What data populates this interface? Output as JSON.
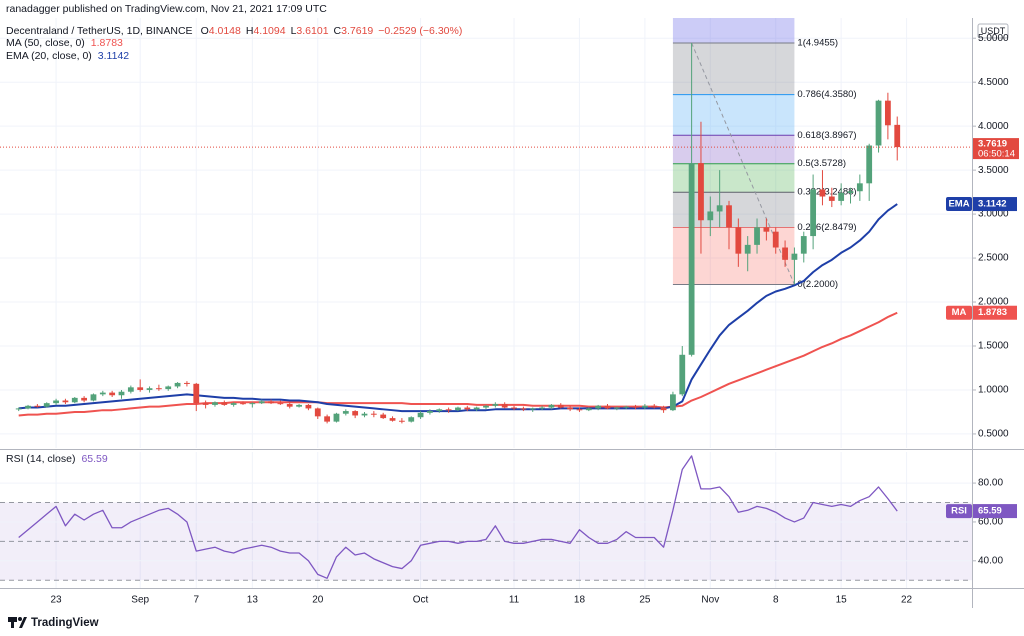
{
  "header": {
    "published": "ranadagger published on TradingView.com, Nov 21, 2021 17:09 UTC",
    "brand": "TradingView"
  },
  "chart_data": {
    "type": "candlestick",
    "symbol": "Decentraland / TetherUS, 1D, BINANCE",
    "ohlc_labels": [
      "O",
      "H",
      "L",
      "C"
    ],
    "change_label": "−0.2529 (−6.30%)",
    "currency": "USDT",
    "countdown": "06:50:14",
    "up_color": "#53a27a",
    "down_color": "#e2493f",
    "grid": true,
    "x": [
      "2021-08-19",
      "2021-08-20",
      "2021-08-21",
      "2021-08-22",
      "2021-08-23",
      "2021-08-24",
      "2021-08-25",
      "2021-08-26",
      "2021-08-27",
      "2021-08-28",
      "2021-08-29",
      "2021-08-30",
      "2021-08-31",
      "2021-09-01",
      "2021-09-02",
      "2021-09-03",
      "2021-09-04",
      "2021-09-05",
      "2021-09-06",
      "2021-09-07",
      "2021-09-08",
      "2021-09-09",
      "2021-09-10",
      "2021-09-11",
      "2021-09-12",
      "2021-09-13",
      "2021-09-14",
      "2021-09-15",
      "2021-09-16",
      "2021-09-17",
      "2021-09-18",
      "2021-09-19",
      "2021-09-20",
      "2021-09-21",
      "2021-09-22",
      "2021-09-23",
      "2021-09-24",
      "2021-09-25",
      "2021-09-26",
      "2021-09-27",
      "2021-09-28",
      "2021-09-29",
      "2021-09-30",
      "2021-10-01",
      "2021-10-02",
      "2021-10-03",
      "2021-10-04",
      "2021-10-05",
      "2021-10-06",
      "2021-10-07",
      "2021-10-08",
      "2021-10-09",
      "2021-10-10",
      "2021-10-11",
      "2021-10-12",
      "2021-10-13",
      "2021-10-14",
      "2021-10-15",
      "2021-10-16",
      "2021-10-17",
      "2021-10-18",
      "2021-10-19",
      "2021-10-20",
      "2021-10-21",
      "2021-10-22",
      "2021-10-23",
      "2021-10-24",
      "2021-10-25",
      "2021-10-26",
      "2021-10-27",
      "2021-10-28",
      "2021-10-29",
      "2021-10-30",
      "2021-10-31",
      "2021-11-01",
      "2021-11-02",
      "2021-11-03",
      "2021-11-04",
      "2021-11-05",
      "2021-11-06",
      "2021-11-07",
      "2021-11-08",
      "2021-11-09",
      "2021-11-10",
      "2021-11-11",
      "2021-11-12",
      "2021-11-13",
      "2021-11-14",
      "2021-11-15",
      "2021-11-16",
      "2021-11-17",
      "2021-11-18",
      "2021-11-19",
      "2021-11-20",
      "2021-11-21"
    ],
    "ohlc": [
      [
        0.78,
        0.8,
        0.76,
        0.79
      ],
      [
        0.79,
        0.83,
        0.78,
        0.82
      ],
      [
        0.82,
        0.84,
        0.8,
        0.81
      ],
      [
        0.81,
        0.86,
        0.8,
        0.85
      ],
      [
        0.85,
        0.9,
        0.83,
        0.88
      ],
      [
        0.88,
        0.9,
        0.84,
        0.86
      ],
      [
        0.86,
        0.92,
        0.85,
        0.91
      ],
      [
        0.91,
        0.93,
        0.86,
        0.88
      ],
      [
        0.88,
        0.96,
        0.87,
        0.95
      ],
      [
        0.95,
        0.99,
        0.93,
        0.97
      ],
      [
        0.97,
        0.99,
        0.92,
        0.94
      ],
      [
        0.94,
        1.0,
        0.9,
        0.98
      ],
      [
        0.98,
        1.05,
        0.96,
        1.03
      ],
      [
        1.03,
        1.12,
        0.98,
        1.0
      ],
      [
        1.0,
        1.04,
        0.97,
        1.02
      ],
      [
        1.02,
        1.06,
        0.99,
        1.01
      ],
      [
        1.01,
        1.05,
        0.99,
        1.04
      ],
      [
        1.04,
        1.09,
        1.02,
        1.08
      ],
      [
        1.08,
        1.1,
        1.04,
        1.07
      ],
      [
        1.07,
        1.08,
        0.76,
        0.85
      ],
      [
        0.85,
        0.88,
        0.79,
        0.83
      ],
      [
        0.83,
        0.87,
        0.81,
        0.86
      ],
      [
        0.86,
        0.88,
        0.82,
        0.83
      ],
      [
        0.83,
        0.86,
        0.81,
        0.85
      ],
      [
        0.85,
        0.87,
        0.83,
        0.84
      ],
      [
        0.84,
        0.86,
        0.8,
        0.85
      ],
      [
        0.85,
        0.89,
        0.84,
        0.87
      ],
      [
        0.87,
        0.89,
        0.84,
        0.85
      ],
      [
        0.85,
        0.88,
        0.83,
        0.84
      ],
      [
        0.84,
        0.86,
        0.79,
        0.81
      ],
      [
        0.81,
        0.84,
        0.8,
        0.83
      ],
      [
        0.83,
        0.84,
        0.77,
        0.79
      ],
      [
        0.79,
        0.8,
        0.67,
        0.7
      ],
      [
        0.7,
        0.72,
        0.62,
        0.64
      ],
      [
        0.64,
        0.74,
        0.63,
        0.73
      ],
      [
        0.73,
        0.78,
        0.71,
        0.76
      ],
      [
        0.76,
        0.77,
        0.68,
        0.71
      ],
      [
        0.71,
        0.75,
        0.69,
        0.73
      ],
      [
        0.73,
        0.76,
        0.69,
        0.72
      ],
      [
        0.72,
        0.74,
        0.67,
        0.68
      ],
      [
        0.68,
        0.7,
        0.64,
        0.65
      ],
      [
        0.65,
        0.68,
        0.62,
        0.64
      ],
      [
        0.64,
        0.7,
        0.63,
        0.69
      ],
      [
        0.69,
        0.76,
        0.67,
        0.74
      ],
      [
        0.74,
        0.78,
        0.72,
        0.76
      ],
      [
        0.76,
        0.79,
        0.74,
        0.78
      ],
      [
        0.78,
        0.8,
        0.74,
        0.77
      ],
      [
        0.77,
        0.81,
        0.76,
        0.8
      ],
      [
        0.8,
        0.82,
        0.76,
        0.78
      ],
      [
        0.78,
        0.81,
        0.76,
        0.8
      ],
      [
        0.8,
        0.83,
        0.78,
        0.82
      ],
      [
        0.82,
        0.86,
        0.8,
        0.84
      ],
      [
        0.84,
        0.86,
        0.79,
        0.8
      ],
      [
        0.8,
        0.82,
        0.77,
        0.79
      ],
      [
        0.79,
        0.81,
        0.76,
        0.78
      ],
      [
        0.78,
        0.8,
        0.75,
        0.79
      ],
      [
        0.79,
        0.82,
        0.77,
        0.8
      ],
      [
        0.8,
        0.84,
        0.78,
        0.83
      ],
      [
        0.83,
        0.85,
        0.79,
        0.8
      ],
      [
        0.8,
        0.82,
        0.76,
        0.78
      ],
      [
        0.78,
        0.8,
        0.75,
        0.77
      ],
      [
        0.77,
        0.8,
        0.76,
        0.79
      ],
      [
        0.79,
        0.83,
        0.77,
        0.82
      ],
      [
        0.82,
        0.84,
        0.78,
        0.79
      ],
      [
        0.79,
        0.81,
        0.77,
        0.8
      ],
      [
        0.8,
        0.82,
        0.78,
        0.81
      ],
      [
        0.81,
        0.83,
        0.78,
        0.8
      ],
      [
        0.8,
        0.84,
        0.78,
        0.82
      ],
      [
        0.82,
        0.84,
        0.79,
        0.8
      ],
      [
        0.8,
        0.82,
        0.74,
        0.77
      ],
      [
        0.77,
        0.98,
        0.76,
        0.95
      ],
      [
        0.95,
        1.5,
        0.93,
        1.4
      ],
      [
        1.4,
        4.9455,
        1.38,
        3.58
      ],
      [
        3.58,
        4.05,
        2.55,
        2.93
      ],
      [
        2.93,
        3.2,
        2.75,
        3.03
      ],
      [
        3.03,
        3.5,
        2.85,
        3.1
      ],
      [
        3.1,
        3.15,
        2.6,
        2.85
      ],
      [
        2.85,
        2.95,
        2.4,
        2.55
      ],
      [
        2.55,
        2.75,
        2.35,
        2.65
      ],
      [
        2.65,
        2.95,
        2.55,
        2.85
      ],
      [
        2.85,
        2.95,
        2.7,
        2.8
      ],
      [
        2.8,
        2.85,
        2.55,
        2.62
      ],
      [
        2.62,
        2.7,
        2.4,
        2.48
      ],
      [
        2.48,
        2.62,
        2.2,
        2.55
      ],
      [
        2.55,
        2.8,
        2.45,
        2.75
      ],
      [
        2.75,
        3.45,
        2.6,
        3.28
      ],
      [
        3.28,
        3.5,
        3.1,
        3.2
      ],
      [
        3.2,
        3.3,
        3.08,
        3.15
      ],
      [
        3.15,
        3.35,
        3.1,
        3.24
      ],
      [
        3.24,
        3.3,
        3.12,
        3.26
      ],
      [
        3.26,
        3.45,
        3.15,
        3.35
      ],
      [
        3.35,
        3.8,
        3.15,
        3.78
      ],
      [
        3.78,
        4.3,
        3.7,
        4.29
      ],
      [
        4.29,
        4.38,
        3.85,
        4.01
      ],
      [
        4.0148,
        4.1094,
        3.6101,
        3.7619
      ]
    ],
    "xlim": [
      "2021-08-17",
      "2021-11-29"
    ],
    "xticks": [
      {
        "value": "2021-08-23",
        "label": "23"
      },
      {
        "value": "2021-09-01",
        "label": "Sep"
      },
      {
        "value": "2021-09-07",
        "label": "7"
      },
      {
        "value": "2021-09-13",
        "label": "13"
      },
      {
        "value": "2021-09-20",
        "label": "20"
      },
      {
        "value": "2021-10-01",
        "label": "Oct"
      },
      {
        "value": "2021-10-11",
        "label": "11"
      },
      {
        "value": "2021-10-18",
        "label": "18"
      },
      {
        "value": "2021-10-25",
        "label": "25"
      },
      {
        "value": "2021-11-01",
        "label": "Nov"
      },
      {
        "value": "2021-11-08",
        "label": "8"
      },
      {
        "value": "2021-11-15",
        "label": "15"
      },
      {
        "value": "2021-11-22",
        "label": "22"
      }
    ],
    "ylim": [
      0.34,
      5.23
    ],
    "yticks": [
      {
        "value": 0.5,
        "label": "0.5000"
      },
      {
        "value": 1,
        "label": "1.0000"
      },
      {
        "value": 1.5,
        "label": "1.5000"
      },
      {
        "value": 2,
        "label": "2.0000"
      },
      {
        "value": 2.5,
        "label": "2.5000"
      },
      {
        "value": 3,
        "label": "3.0000"
      },
      {
        "value": 3.5,
        "label": "3.5000"
      },
      {
        "value": 4,
        "label": "4.0000"
      },
      {
        "value": 4.5,
        "label": "4.5000"
      },
      {
        "value": 5,
        "label": "5.0000"
      }
    ],
    "lines": [
      {
        "name": "MA (50, close, 0)",
        "tag": "MA",
        "color": "#ef5350",
        "values": [
          0.71,
          0.72,
          0.72,
          0.73,
          0.73,
          0.74,
          0.75,
          0.75,
          0.76,
          0.77,
          0.77,
          0.78,
          0.79,
          0.8,
          0.81,
          0.81,
          0.82,
          0.83,
          0.84,
          0.84,
          0.85,
          0.85,
          0.85,
          0.86,
          0.86,
          0.86,
          0.86,
          0.86,
          0.86,
          0.86,
          0.86,
          0.86,
          0.86,
          0.85,
          0.85,
          0.85,
          0.85,
          0.85,
          0.85,
          0.85,
          0.85,
          0.85,
          0.84,
          0.84,
          0.84,
          0.84,
          0.84,
          0.84,
          0.84,
          0.83,
          0.83,
          0.83,
          0.83,
          0.83,
          0.83,
          0.82,
          0.82,
          0.82,
          0.82,
          0.82,
          0.82,
          0.81,
          0.81,
          0.81,
          0.81,
          0.81,
          0.81,
          0.81,
          0.81,
          0.8,
          0.81,
          0.82,
          0.88,
          0.92,
          0.97,
          1.02,
          1.07,
          1.11,
          1.15,
          1.19,
          1.23,
          1.27,
          1.31,
          1.35,
          1.39,
          1.44,
          1.49,
          1.53,
          1.58,
          1.62,
          1.67,
          1.72,
          1.77,
          1.83,
          1.8783
        ]
      },
      {
        "name": "EMA (20, close, 0)",
        "tag": "EMA",
        "color": "#1e3fa8",
        "values": [
          0.79,
          0.8,
          0.8,
          0.81,
          0.82,
          0.82,
          0.83,
          0.84,
          0.85,
          0.86,
          0.87,
          0.88,
          0.89,
          0.9,
          0.91,
          0.92,
          0.93,
          0.94,
          0.95,
          0.94,
          0.93,
          0.92,
          0.91,
          0.91,
          0.9,
          0.9,
          0.89,
          0.89,
          0.89,
          0.88,
          0.88,
          0.87,
          0.86,
          0.84,
          0.83,
          0.82,
          0.81,
          0.8,
          0.79,
          0.78,
          0.77,
          0.76,
          0.76,
          0.76,
          0.76,
          0.76,
          0.76,
          0.76,
          0.77,
          0.77,
          0.77,
          0.78,
          0.78,
          0.78,
          0.78,
          0.78,
          0.78,
          0.78,
          0.79,
          0.79,
          0.79,
          0.79,
          0.79,
          0.79,
          0.79,
          0.79,
          0.79,
          0.79,
          0.79,
          0.79,
          0.81,
          0.87,
          1.12,
          1.29,
          1.46,
          1.62,
          1.74,
          1.82,
          1.9,
          1.99,
          2.07,
          2.12,
          2.15,
          2.19,
          2.24,
          2.34,
          2.42,
          2.48,
          2.56,
          2.62,
          2.7,
          2.8,
          2.94,
          3.04,
          3.1142
        ]
      }
    ],
    "fib": {
      "x": [
        "2021-10-28",
        "2021-11-10"
      ],
      "trend_x": [
        "2021-10-30",
        "2021-11-10"
      ],
      "trend_color": "#9598a1",
      "levels": [
        {
          "label": "1(4.9455)",
          "value": 4.9455,
          "color": "#787b86",
          "fill": "rgba(96,96,230,0.32)"
        },
        {
          "label": "0.786(4.3580)",
          "value": 4.358,
          "color": "#2196f3",
          "fill": "rgba(120,123,134,0.3)"
        },
        {
          "label": "0.618(3.8967)",
          "value": 3.8967,
          "color": "#6a3fb0",
          "fill": "rgba(100,181,246,0.35)"
        },
        {
          "label": "0.5(3.5728)",
          "value": 3.5728,
          "color": "#2e9e48",
          "fill": "rgba(126,87,194,0.3)"
        },
        {
          "label": "0.382(3.2488)",
          "value": 3.2488,
          "color": "#5d606b",
          "fill": "rgba(76,175,80,0.3)"
        },
        {
          "label": "0.236(2.8479)",
          "value": 2.8479,
          "color": "#e57373",
          "fill": "rgba(120,123,134,0.3)"
        },
        {
          "label": "0(2.2000)",
          "value": 2.2,
          "color": "#787b86",
          "fill": "rgba(244,67,54,0.22)"
        }
      ]
    },
    "rsi": {
      "name": "RSI (14, close)",
      "tag": "RSI",
      "color": "#7e57c2",
      "band_fill": "rgba(126,87,194,0.1)",
      "ylim": [
        26,
        96
      ],
      "yticks": [
        {
          "value": 40,
          "label": "40.00"
        },
        {
          "value": 60,
          "label": "60.00"
        },
        {
          "value": 80,
          "label": "80.00"
        }
      ],
      "levels": [
        70,
        50,
        30
      ],
      "values": [
        52,
        56,
        60,
        64,
        68,
        58,
        64,
        61,
        64,
        66,
        57,
        57,
        60,
        62,
        64,
        66,
        67,
        64,
        60,
        45,
        46,
        47,
        45,
        44,
        46,
        47,
        48,
        47,
        45,
        44,
        44,
        40,
        33,
        31,
        42,
        47,
        43,
        44,
        41,
        39,
        37,
        36,
        40,
        48,
        49,
        50,
        50,
        49,
        50,
        50,
        51,
        58,
        50,
        49,
        49,
        50,
        51,
        51,
        50,
        49,
        56,
        52,
        49,
        49,
        51,
        55,
        52,
        52,
        52,
        47,
        66,
        87,
        94,
        77,
        77,
        78,
        73,
        65,
        66,
        68,
        67,
        65,
        62,
        60,
        62,
        70,
        69,
        68,
        69,
        68,
        71,
        73,
        78,
        72,
        65.59
      ]
    }
  }
}
